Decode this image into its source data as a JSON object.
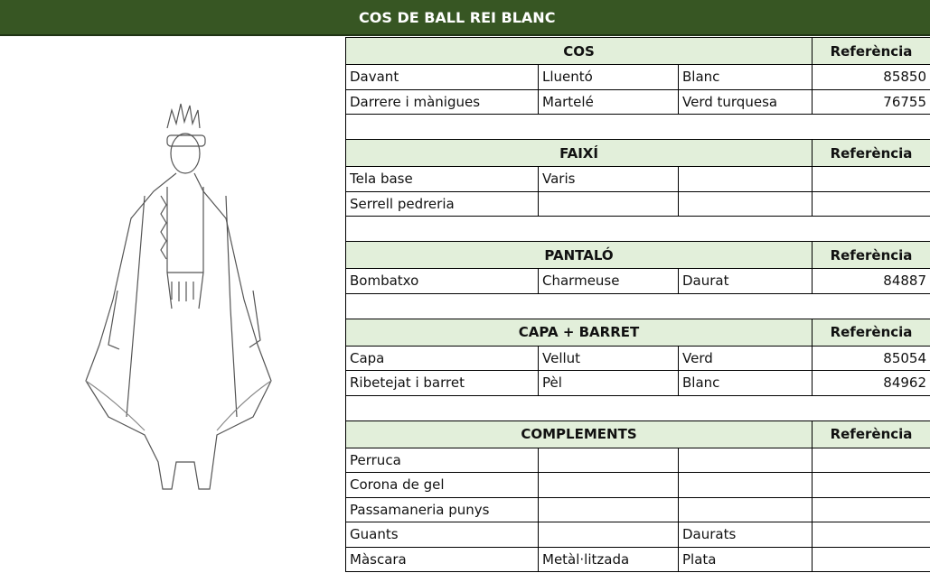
{
  "header": {
    "title": "COS DE BALL REI BLANC"
  },
  "sections": [
    {
      "title": "COS",
      "reference_label": "Referència",
      "rows": [
        [
          "Davant",
          "Lluentó",
          "Blanc",
          85850
        ],
        [
          "Darrere i mànigues",
          "Martelé",
          "Verd turquesa",
          76755
        ]
      ]
    },
    {
      "title": "FAIXÍ",
      "reference_label": "Referència",
      "rows": [
        [
          "Tela base",
          "Varis",
          null,
          null
        ],
        [
          "Serrell pedreria",
          null,
          null,
          null
        ]
      ]
    },
    {
      "title": "PANTALÓ",
      "reference_label": "Referència",
      "rows": [
        [
          "Bombatxo",
          "Charmeuse",
          "Daurat",
          84887
        ]
      ]
    },
    {
      "title": "CAPA +  BARRET",
      "reference_label": "Referència",
      "rows": [
        [
          "Capa",
          "Vellut",
          "Verd",
          85054
        ],
        [
          "Ribetejat i barret",
          "Pèl",
          "Blanc",
          84962
        ]
      ]
    },
    {
      "title": "COMPLEMENTS",
      "reference_label": "Referència",
      "rows": [
        [
          "Perruca",
          null,
          null,
          null
        ],
        [
          "Corona de gel",
          null,
          null,
          null
        ],
        [
          "Passamaneria punys",
          null,
          null,
          null
        ],
        [
          "Guants",
          null,
          "Daurats",
          null
        ],
        [
          "Màscara",
          "Metàl·litzada",
          "Plata",
          null
        ]
      ]
    }
  ]
}
